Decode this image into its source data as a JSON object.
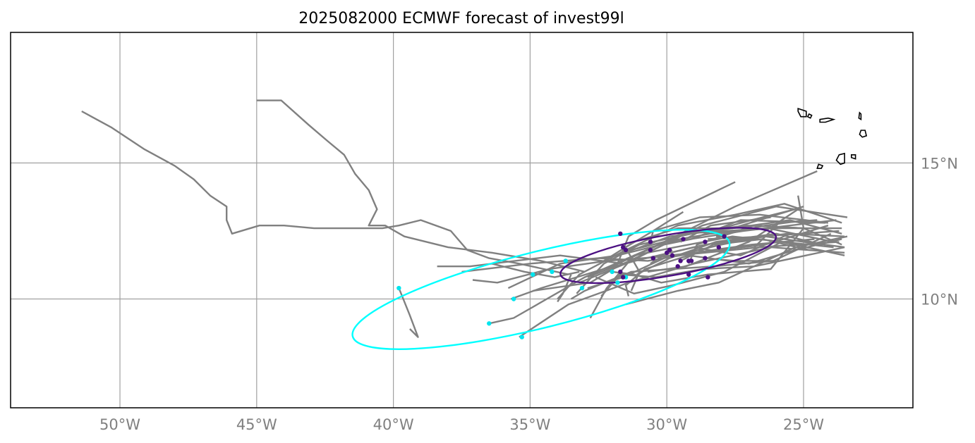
{
  "title": "2025082000 ECMWF forecast of invest99l",
  "colors": {
    "track": "#808080",
    "grid": "#a0a0a0",
    "late_points": "#4b1082",
    "early_points": "#00e5ee",
    "late_ellipse": "#4b1082",
    "early_ellipse": "#00ffff",
    "coast": "#000000",
    "frame": "#000000"
  },
  "map": {
    "lon_range": [
      -54,
      -21
    ],
    "lat_range": [
      6,
      19.8
    ],
    "grid": true,
    "lon_ticks": [
      {
        "value": -50,
        "label": "50°W"
      },
      {
        "value": -45,
        "label": "45°W"
      },
      {
        "value": -40,
        "label": "40°W"
      },
      {
        "value": -35,
        "label": "35°W"
      },
      {
        "value": -30,
        "label": "30°W"
      },
      {
        "value": -25,
        "label": "25°W"
      }
    ],
    "lat_ticks": [
      {
        "value": 15,
        "label": "15°N"
      },
      {
        "value": 10,
        "label": "10°N"
      }
    ]
  },
  "tracks": [
    [
      [
        -24.5,
        14.7
      ],
      [
        -27.5,
        13.4
      ],
      [
        -30.3,
        12.0
      ],
      [
        -33.0,
        10.8
      ],
      [
        -35.6,
        9.3
      ],
      [
        -36.5,
        9.1
      ]
    ],
    [
      [
        -23.5,
        12.3
      ],
      [
        -25.6,
        12.4
      ],
      [
        -28.6,
        12.0
      ],
      [
        -31.6,
        11.3
      ],
      [
        -33.9,
        11.6
      ],
      [
        -37.2,
        11.2
      ],
      [
        -38.4,
        11.2
      ]
    ],
    [
      [
        -23.6,
        12.6
      ],
      [
        -26.3,
        12.6
      ],
      [
        -29.4,
        12.4
      ],
      [
        -32.0,
        11.2
      ],
      [
        -34.6,
        10.4
      ],
      [
        -35.7,
        10.0
      ]
    ],
    [
      [
        -23.7,
        12.1
      ],
      [
        -26.6,
        11.9
      ],
      [
        -29.6,
        11.6
      ],
      [
        -32.2,
        11.4
      ],
      [
        -34.3,
        11.1
      ],
      [
        -36.2,
        10.6
      ],
      [
        -37.1,
        10.7
      ]
    ],
    [
      [
        -23.5,
        11.7
      ],
      [
        -26.2,
        11.9
      ],
      [
        -29.0,
        11.3
      ],
      [
        -31.4,
        10.6
      ],
      [
        -33.6,
        9.8
      ],
      [
        -35.4,
        8.6
      ]
    ],
    [
      [
        -23.6,
        12.8
      ],
      [
        -25.7,
        13.5
      ],
      [
        -27.5,
        13.1
      ],
      [
        -29.6,
        12.7
      ],
      [
        -31.5,
        11.8
      ],
      [
        -33.2,
        10.9
      ],
      [
        -34.0,
        10.0
      ]
    ],
    [
      [
        -23.8,
        12.9
      ],
      [
        -27.2,
        12.5
      ],
      [
        -29.8,
        12.1
      ],
      [
        -31.8,
        11.6
      ],
      [
        -33.9,
        11.3
      ],
      [
        -35.8,
        10.4
      ]
    ],
    [
      [
        -24.0,
        12.4
      ],
      [
        -26.1,
        11.4
      ],
      [
        -28.3,
        11.2
      ],
      [
        -31.3,
        11.0
      ],
      [
        -33.0,
        10.3
      ],
      [
        -33.5,
        10.0
      ]
    ],
    [
      [
        -24.1,
        12.7
      ],
      [
        -26.4,
        12.0
      ],
      [
        -28.9,
        11.7
      ],
      [
        -30.7,
        11.4
      ],
      [
        -32.5,
        11.5
      ],
      [
        -35.0,
        11.3
      ],
      [
        -37.5,
        11.0
      ]
    ],
    [
      [
        -23.9,
        11.9
      ],
      [
        -27.6,
        12.3
      ],
      [
        -29.7,
        11.9
      ],
      [
        -31.2,
        11.6
      ],
      [
        -32.2,
        10.4
      ],
      [
        -32.8,
        9.3
      ]
    ],
    [
      [
        -23.4,
        13.0
      ],
      [
        -26.0,
        13.4
      ],
      [
        -28.7,
        12.7
      ],
      [
        -30.3,
        11.9
      ],
      [
        -31.5,
        11.3
      ],
      [
        -33.2,
        10.6
      ]
    ],
    [
      [
        -23.6,
        12.2
      ],
      [
        -25.3,
        11.8
      ],
      [
        -27.0,
        11.3
      ],
      [
        -29.2,
        11.6
      ],
      [
        -30.8,
        11.1
      ],
      [
        -31.5,
        10.5
      ],
      [
        -31.4,
        10.1
      ]
    ],
    [
      [
        -23.5,
        11.9
      ],
      [
        -26.8,
        11.2
      ],
      [
        -28.7,
        11.1
      ],
      [
        -30.4,
        10.8
      ],
      [
        -31.7,
        10.9
      ],
      [
        -32.4,
        10.1
      ]
    ],
    [
      [
        -24.2,
        12.8
      ],
      [
        -27.3,
        12.9
      ],
      [
        -29.1,
        12.2
      ],
      [
        -30.1,
        12.0
      ],
      [
        -31.8,
        11.2
      ],
      [
        -32.8,
        10.6
      ],
      [
        -34.9,
        10.3
      ]
    ],
    [
      [
        -25.0,
        12.6
      ],
      [
        -27.1,
        12.7
      ],
      [
        -28.6,
        12.5
      ],
      [
        -31.0,
        12.0
      ],
      [
        -32.3,
        11.3
      ],
      [
        -33.3,
        10.2
      ]
    ],
    [
      [
        -23.7,
        12.5
      ],
      [
        -26.5,
        12.3
      ],
      [
        -28.0,
        12.0
      ],
      [
        -30.1,
        11.5
      ],
      [
        -31.6,
        10.8
      ],
      [
        -32.9,
        10.4
      ]
    ],
    [
      [
        -23.5,
        11.6
      ],
      [
        -25.8,
        12.1
      ],
      [
        -27.9,
        11.0
      ],
      [
        -29.8,
        10.5
      ],
      [
        -31.2,
        10.2
      ],
      [
        -32.6,
        10.8
      ]
    ],
    [
      [
        -25.2,
        13.8
      ],
      [
        -25.0,
        12.6
      ],
      [
        -26.2,
        11.1
      ],
      [
        -28.5,
        10.9
      ],
      [
        -30.2,
        10.6
      ],
      [
        -31.2,
        10.9
      ],
      [
        -32.0,
        11.0
      ]
    ],
    [
      [
        -24.6,
        12.2
      ],
      [
        -26.9,
        12.0
      ],
      [
        -29.0,
        11.7
      ],
      [
        -30.8,
        11.5
      ],
      [
        -31.9,
        11.2
      ],
      [
        -32.9,
        10.8
      ]
    ],
    [
      [
        -23.4,
        12.3
      ],
      [
        -25.3,
        11.9
      ],
      [
        -28.1,
        10.6
      ],
      [
        -29.6,
        10.3
      ],
      [
        -31.5,
        9.8
      ]
    ],
    [
      [
        -23.6,
        12.4
      ],
      [
        -25.5,
        12.9
      ],
      [
        -27.6,
        12.6
      ],
      [
        -29.9,
        12.3
      ],
      [
        -31.8,
        11.6
      ]
    ],
    [
      [
        -23.9,
        12.1
      ],
      [
        -26.3,
        12.6
      ],
      [
        -28.4,
        12.4
      ],
      [
        -30.1,
        12.1
      ],
      [
        -31.7,
        11.7
      ]
    ],
    [
      [
        -24.3,
        12.0
      ],
      [
        -26.0,
        12.4
      ],
      [
        -28.2,
        12.1
      ],
      [
        -29.9,
        11.5
      ],
      [
        -31.1,
        10.9
      ]
    ],
    [
      [
        -23.6,
        12.0
      ],
      [
        -25.0,
        12.6
      ],
      [
        -26.8,
        12.7
      ],
      [
        -28.9,
        12.0
      ],
      [
        -29.2,
        11.3
      ]
    ],
    [
      [
        -25.2,
        13.3
      ],
      [
        -27.0,
        12.1
      ],
      [
        -29.3,
        11.2
      ],
      [
        -30.7,
        11.0
      ]
    ],
    [
      [
        -25.5,
        12.4
      ],
      [
        -27.3,
        11.6
      ],
      [
        -29.0,
        11.9
      ],
      [
        -30.3,
        11.6
      ]
    ],
    [
      [
        -24.8,
        11.8
      ],
      [
        -26.5,
        12.2
      ],
      [
        -28.3,
        12.0
      ],
      [
        -29.5,
        11.4
      ]
    ],
    [
      [
        -27.5,
        14.3
      ],
      [
        -30.4,
        12.9
      ],
      [
        -31.4,
        12.3
      ],
      [
        -31.8,
        11.3
      ],
      [
        -32.1,
        11.0
      ]
    ],
    [
      [
        -25.0,
        13.4
      ],
      [
        -27.6,
        12.6
      ],
      [
        -29.6,
        12.6
      ],
      [
        -31.2,
        12.1
      ],
      [
        -32.3,
        11.4
      ]
    ],
    [
      [
        -24.1,
        12.8
      ],
      [
        -26.6,
        13.1
      ],
      [
        -28.8,
        13.0
      ],
      [
        -30.5,
        12.5
      ],
      [
        -31.5,
        11.9
      ]
    ],
    [
      [
        -25.3,
        13.3
      ],
      [
        -26.9,
        12.9
      ],
      [
        -28.0,
        12.6
      ],
      [
        -29.3,
        12.4
      ]
    ],
    [
      [
        -26.2,
        13.0
      ],
      [
        -28.4,
        12.7
      ],
      [
        -29.5,
        12.1
      ]
    ],
    [
      [
        -24.9,
        12.9
      ],
      [
        -26.4,
        12.7
      ],
      [
        -28.2,
        12.3
      ]
    ],
    [
      [
        -29.4,
        13.2
      ],
      [
        -30.5,
        12.5
      ],
      [
        -30.6,
        12.1
      ]
    ],
    [
      [
        -23.5,
        11.9
      ],
      [
        -25.0,
        12.1
      ],
      [
        -26.4,
        12.3
      ],
      [
        -28.5,
        12.2
      ]
    ],
    [
      [
        -36.4,
        11.3
      ],
      [
        -35.2,
        11.0
      ],
      [
        -34.1,
        10.8
      ],
      [
        -33.2,
        11.0
      ]
    ],
    [
      [
        -33.5,
        10.9
      ],
      [
        -33.8,
        10.2
      ],
      [
        -34.0,
        9.9
      ]
    ],
    [
      [
        -31.4,
        11.7
      ],
      [
        -31.0,
        11.0
      ],
      [
        -31.3,
        10.3
      ]
    ],
    [
      [
        -24.5,
        12.9
      ],
      [
        -25.9,
        12.8
      ],
      [
        -26.8,
        11.9
      ]
    ],
    [
      [
        -26.0,
        11.4
      ],
      [
        -27.5,
        11.4
      ],
      [
        -28.6,
        11.5
      ]
    ],
    [
      [
        -29.8,
        11.8
      ],
      [
        -30.6,
        11.3
      ]
    ],
    [
      [
        -51.4,
        16.9
      ],
      [
        -50.3,
        16.3
      ],
      [
        -49.1,
        15.5
      ],
      [
        -48.0,
        14.9
      ],
      [
        -47.3,
        14.4
      ],
      [
        -46.7,
        13.8
      ],
      [
        -46.1,
        13.4
      ],
      [
        -46.1,
        12.9
      ],
      [
        -45.9,
        12.4
      ],
      [
        -44.9,
        12.7
      ],
      [
        -44.0,
        12.7
      ],
      [
        -42.9,
        12.6
      ],
      [
        -41.9,
        12.6
      ],
      [
        -41.0,
        12.6
      ],
      [
        -40.4,
        12.6
      ],
      [
        -39.8,
        12.7
      ],
      [
        -39.0,
        12.9
      ],
      [
        -37.9,
        12.5
      ],
      [
        -37.3,
        11.8
      ],
      [
        -36.5,
        11.5
      ],
      [
        -35.4,
        11.3
      ],
      [
        -34.5,
        11.1
      ],
      [
        -33.6,
        10.9
      ]
    ],
    [
      [
        -45.0,
        17.3
      ],
      [
        -44.1,
        17.3
      ],
      [
        -43.1,
        16.4
      ],
      [
        -42.4,
        15.8
      ],
      [
        -41.8,
        15.3
      ],
      [
        -41.4,
        14.6
      ],
      [
        -40.9,
        14.0
      ],
      [
        -40.6,
        13.3
      ],
      [
        -40.9,
        12.7
      ],
      [
        -40.3,
        12.7
      ],
      [
        -39.6,
        12.3
      ],
      [
        -38.0,
        11.9
      ],
      [
        -36.4,
        11.7
      ],
      [
        -34.6,
        11.4
      ],
      [
        -33.0,
        11.0
      ]
    ],
    [
      [
        -39.8,
        10.4
      ],
      [
        -39.4,
        9.4
      ],
      [
        -39.1,
        8.6
      ],
      [
        -39.4,
        8.9
      ]
    ]
  ],
  "early_points": [
    [
      -39.8,
      10.4
    ],
    [
      -36.5,
      9.1
    ],
    [
      -35.3,
      8.6
    ],
    [
      -35.6,
      10.0
    ],
    [
      -34.9,
      10.9
    ],
    [
      -34.2,
      11.0
    ],
    [
      -33.7,
      11.4
    ],
    [
      -33.1,
      10.4
    ],
    [
      -32.0,
      11.0
    ],
    [
      -31.8,
      10.6
    ],
    [
      -31.5,
      10.8
    ]
  ],
  "late_points": [
    [
      -31.7,
      12.4
    ],
    [
      -31.6,
      11.9
    ],
    [
      -31.5,
      11.8
    ],
    [
      -30.6,
      12.1
    ],
    [
      -30.6,
      11.8
    ],
    [
      -30.5,
      11.5
    ],
    [
      -30.0,
      11.7
    ],
    [
      -29.9,
      11.8
    ],
    [
      -29.8,
      11.6
    ],
    [
      -29.6,
      11.2
    ],
    [
      -29.5,
      11.4
    ],
    [
      -29.4,
      12.2
    ],
    [
      -29.2,
      11.4
    ],
    [
      -29.1,
      11.4
    ],
    [
      -29.2,
      10.9
    ],
    [
      -28.6,
      12.1
    ],
    [
      -28.6,
      11.5
    ],
    [
      -28.5,
      10.8
    ],
    [
      -28.1,
      11.9
    ],
    [
      -27.9,
      12.3
    ],
    [
      -31.6,
      10.8
    ],
    [
      -31.7,
      11.0
    ]
  ],
  "early_ellipse": {
    "center": [
      -34.6,
      10.35
    ],
    "rx_deg": 7.1,
    "ry_deg": 1.4,
    "angle_deg": 14
  },
  "late_ellipse": {
    "center": [
      -29.95,
      11.6
    ],
    "rx_deg": 4.0,
    "ry_deg": 0.75,
    "angle_deg": 10
  },
  "islands": [
    [
      [
        -25.2,
        17.0
      ],
      [
        -24.9,
        16.9
      ],
      [
        -24.9,
        16.7
      ],
      [
        -25.1,
        16.7
      ],
      [
        -25.2,
        16.9
      ]
    ],
    [
      [
        -24.8,
        16.8
      ],
      [
        -24.7,
        16.75
      ],
      [
        -24.75,
        16.65
      ],
      [
        -24.85,
        16.7
      ]
    ],
    [
      [
        -24.4,
        16.6
      ],
      [
        -24.1,
        16.65
      ],
      [
        -23.9,
        16.6
      ],
      [
        -24.2,
        16.5
      ],
      [
        -24.4,
        16.5
      ]
    ],
    [
      [
        -22.95,
        16.85
      ],
      [
        -22.9,
        16.8
      ],
      [
        -22.9,
        16.6
      ],
      [
        -22.98,
        16.65
      ]
    ],
    [
      [
        -22.9,
        16.2
      ],
      [
        -22.75,
        16.2
      ],
      [
        -22.7,
        16.0
      ],
      [
        -22.85,
        15.95
      ],
      [
        -22.95,
        16.05
      ]
    ],
    [
      [
        -24.45,
        14.95
      ],
      [
        -24.3,
        14.9
      ],
      [
        -24.35,
        14.8
      ],
      [
        -24.5,
        14.8
      ]
    ],
    [
      [
        -23.7,
        15.3
      ],
      [
        -23.5,
        15.35
      ],
      [
        -23.5,
        15.0
      ],
      [
        -23.65,
        14.95
      ],
      [
        -23.8,
        15.1
      ]
    ],
    [
      [
        -23.25,
        15.3
      ],
      [
        -23.1,
        15.3
      ],
      [
        -23.1,
        15.15
      ],
      [
        -23.25,
        15.2
      ]
    ]
  ]
}
